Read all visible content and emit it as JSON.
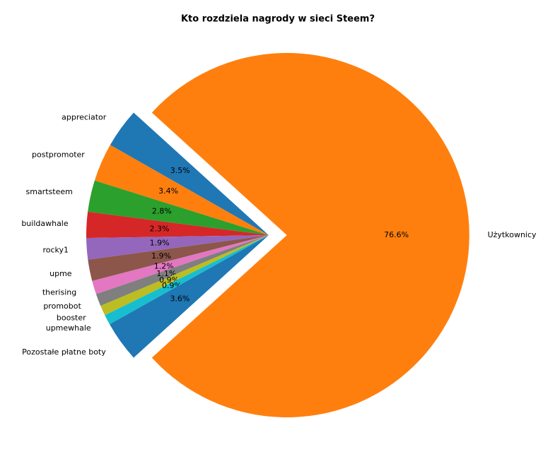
{
  "chart_data": {
    "type": "pie",
    "title": "Kto rozdziela nagrody w sieci Steem?",
    "categories": [
      "appreciator",
      "postpromoter",
      "smartsteem",
      "buildawhale",
      "rocky1",
      "upme",
      "therising",
      "promobot",
      "booster",
      "upmewhale",
      "Pozostałe płatne boty",
      "Użytkownicy"
    ],
    "values": [
      3.5,
      3.4,
      2.8,
      2.3,
      1.9,
      1.9,
      1.2,
      1.1,
      0.9,
      0.9,
      3.6,
      76.6
    ],
    "value_labels": [
      "3.5%",
      "3.4%",
      "2.8%",
      "2.3%",
      "1.9%",
      "1.9%",
      "1.2%",
      "1.1%",
      "0.9%",
      "0.9%",
      "3.6%",
      "76.6%"
    ],
    "colors": [
      "#1f77b4",
      "#ff7f0e",
      "#2ca02c",
      "#d62728",
      "#9467bd",
      "#8c564b",
      "#e377c2",
      "#7f7f7f",
      "#bcbd22",
      "#17becf",
      "#1f77b4",
      "#ff7f0e"
    ],
    "explode": [
      0,
      0,
      0,
      0,
      0,
      0,
      0,
      0,
      0,
      0,
      0,
      0.1
    ]
  }
}
